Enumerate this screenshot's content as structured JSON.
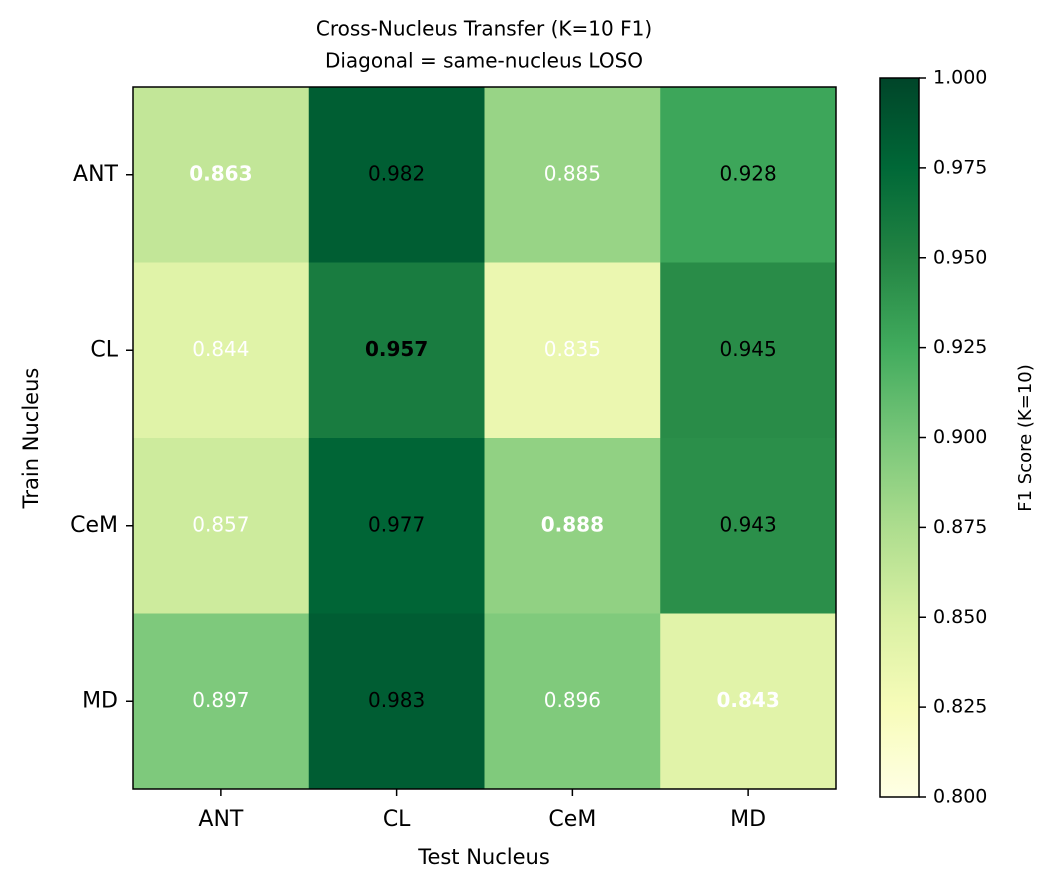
{
  "chart_data": {
    "type": "heatmap",
    "title": "Cross-Nucleus Transfer (K=10 F1)",
    "subtitle": "Diagonal = same-nucleus LOSO",
    "x_label": "Test Nucleus",
    "y_label": "Train Nucleus",
    "x_categories": [
      "ANT",
      "CL",
      "CeM",
      "MD"
    ],
    "y_categories": [
      "ANT",
      "CL",
      "CeM",
      "MD"
    ],
    "values": [
      [
        0.863,
        0.982,
        0.885,
        0.928
      ],
      [
        0.844,
        0.957,
        0.835,
        0.945
      ],
      [
        0.857,
        0.977,
        0.888,
        0.943
      ],
      [
        0.897,
        0.983,
        0.896,
        0.843
      ]
    ],
    "text_colors": [
      [
        "#ffffff",
        "#000000",
        "#ffffff",
        "#000000"
      ],
      [
        "#ffffff",
        "#000000",
        "#ffffff",
        "#000000"
      ],
      [
        "#ffffff",
        "#000000",
        "#ffffff",
        "#000000"
      ],
      [
        "#ffffff",
        "#000000",
        "#ffffff",
        "#ffffff"
      ]
    ],
    "bold_diagonal": true,
    "colormap": [
      "#ffffe5",
      "#f7fcb9",
      "#d9f0a3",
      "#addd8e",
      "#78c679",
      "#41ab5d",
      "#238443",
      "#006837",
      "#004529"
    ],
    "colorbar_label": "F1 Score (K=10)",
    "clim": [
      0.8,
      1.0
    ],
    "cticks": [
      {
        "value": 0.8,
        "label": "0.800"
      },
      {
        "value": 0.825,
        "label": "0.825"
      },
      {
        "value": 0.85,
        "label": "0.850"
      },
      {
        "value": 0.875,
        "label": "0.875"
      },
      {
        "value": 0.9,
        "label": "0.900"
      },
      {
        "value": 0.925,
        "label": "0.925"
      },
      {
        "value": 0.95,
        "label": "0.950"
      },
      {
        "value": 0.975,
        "label": "0.975"
      },
      {
        "value": 1.0,
        "label": "1.000"
      }
    ]
  }
}
